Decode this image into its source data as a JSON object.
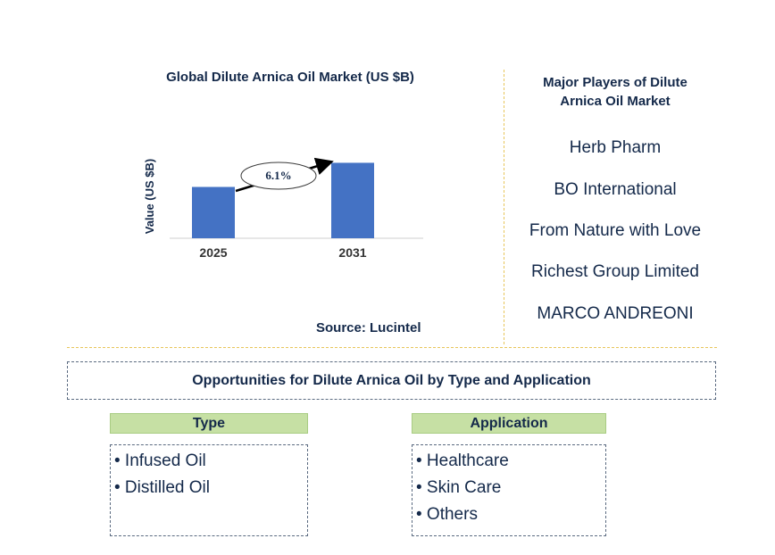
{
  "chart_data": {
    "type": "bar",
    "title": "Global Dilute Arnica Oil Market (US $B)",
    "ylabel": "Value (US $B)",
    "xlabel": "",
    "categories": [
      "2025",
      "2031"
    ],
    "values": [
      0.68,
      1.0
    ],
    "ylim": [
      0,
      1.1
    ],
    "grid": false,
    "bar_color": "#4472c4",
    "annotation": {
      "text": "6.1%"
    }
  },
  "source": "Source: Lucintel",
  "players": {
    "title_line1": "Major Players of Dilute",
    "title_line2": "Arnica Oil Market",
    "items": [
      "Herb Pharm",
      "BO International",
      "From Nature with Love",
      "Richest Group Limited",
      "MARCO ANDREONI"
    ]
  },
  "opportunities": {
    "title": "Opportunities for Dilute Arnica Oil by Type and Application"
  },
  "type": {
    "header": "Type",
    "items": [
      "• Infused Oil",
      "• Distilled Oil"
    ]
  },
  "application": {
    "header": "Application",
    "items": [
      "• Healthcare",
      "• Skin Care",
      "• Others"
    ]
  },
  "colors": {
    "header_bg": "#c6e0a4",
    "divider": "#e8c65a",
    "bar": "#4472c4"
  }
}
